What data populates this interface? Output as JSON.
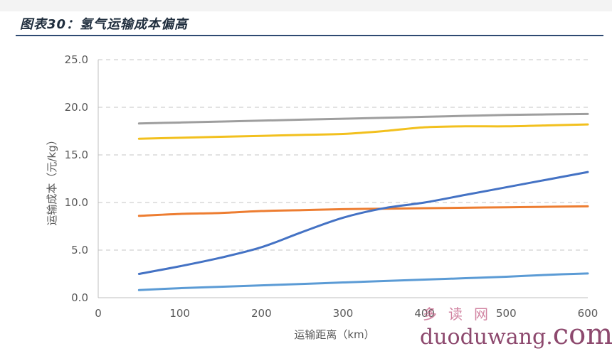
{
  "header": {
    "title": "图表30：氢气运输成本偏高"
  },
  "watermark": {
    "chinese": "多读网",
    "url_prefix": "duoduwang.",
    "url_suffix": "com"
  },
  "chart_data": {
    "type": "line",
    "xlabel": "运输距离（km）",
    "ylabel": "运输成本（元/kg）",
    "xlim": [
      0,
      600
    ],
    "ylim": [
      0,
      25
    ],
    "x_ticks": [
      0,
      100,
      200,
      300,
      400,
      500,
      600
    ],
    "y_ticks": [
      0,
      5,
      10,
      15,
      20,
      25
    ],
    "grid": "horizontal dashed",
    "legend": "none",
    "x": [
      50,
      100,
      150,
      200,
      250,
      300,
      350,
      400,
      450,
      500,
      550,
      600
    ],
    "series": [
      {
        "color": "#9e9e9e",
        "values": [
          18.3,
          18.4,
          18.5,
          18.6,
          18.7,
          18.8,
          18.9,
          19.0,
          19.1,
          19.2,
          19.25,
          19.3
        ]
      },
      {
        "color": "#f2c01e",
        "values": [
          16.7,
          16.8,
          16.9,
          17.0,
          17.1,
          17.2,
          17.5,
          17.9,
          18.0,
          18.0,
          18.1,
          18.2
        ]
      },
      {
        "color": "#ed7d31",
        "values": [
          8.6,
          8.8,
          8.9,
          9.1,
          9.2,
          9.3,
          9.35,
          9.4,
          9.45,
          9.5,
          9.55,
          9.6
        ]
      },
      {
        "color": "#4472c4",
        "values": [
          2.5,
          3.3,
          4.2,
          5.3,
          6.9,
          8.4,
          9.4,
          10.0,
          10.8,
          11.6,
          12.4,
          13.2
        ]
      },
      {
        "color": "#5b9bd5",
        "values": [
          0.8,
          1.0,
          1.15,
          1.3,
          1.45,
          1.6,
          1.75,
          1.9,
          2.05,
          2.2,
          2.4,
          2.55
        ]
      }
    ]
  }
}
